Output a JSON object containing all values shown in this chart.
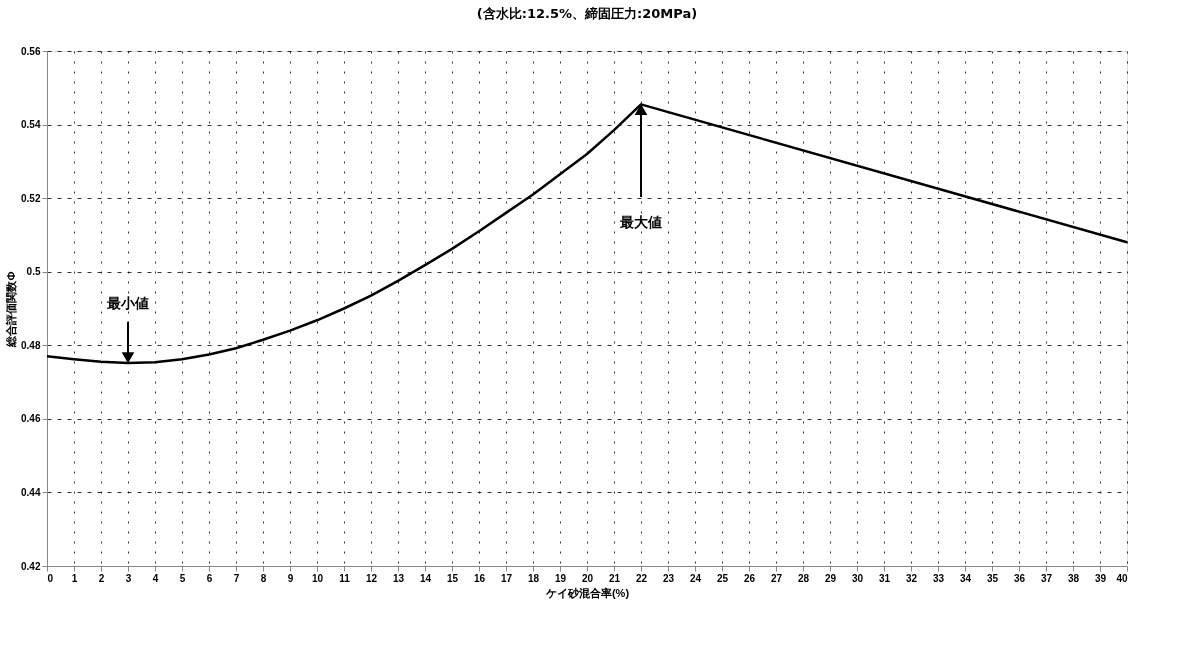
{
  "chart_data": {
    "type": "line",
    "title": "(含水比:12.5%、締固圧力:20MPa)",
    "xlabel": "ケイ砂混合率(%)",
    "ylabel": "総合評価関数Φ",
    "x": [
      0,
      1,
      2,
      3,
      4,
      5,
      6,
      7,
      8,
      9,
      10,
      11,
      12,
      13,
      14,
      15,
      16,
      17,
      18,
      19,
      20,
      21,
      22,
      40
    ],
    "series": [
      {
        "color": "#000000",
        "values": [
          0.477,
          0.4762,
          0.4755,
          0.4752,
          0.4754,
          0.4762,
          0.4775,
          0.4792,
          0.4815,
          0.484,
          0.4868,
          0.49,
          0.4935,
          0.4975,
          0.5018,
          0.5062,
          0.511,
          0.516,
          0.521,
          0.5265,
          0.532,
          0.5385,
          0.5455,
          0.508
        ]
      }
    ],
    "xlim": [
      0,
      40
    ],
    "xticks": [
      0,
      1,
      2,
      3,
      4,
      5,
      6,
      7,
      8,
      9,
      10,
      11,
      12,
      13,
      14,
      15,
      16,
      17,
      18,
      19,
      20,
      21,
      22,
      23,
      24,
      25,
      26,
      27,
      28,
      29,
      30,
      31,
      32,
      33,
      34,
      35,
      36,
      37,
      38,
      39,
      40
    ],
    "ylim": [
      0.42,
      0.56
    ],
    "yticks": [
      0.42,
      0.44,
      0.46,
      0.48,
      0.5,
      0.52,
      0.54,
      0.56
    ],
    "grid": true,
    "annotations": [
      {
        "text": "最小値",
        "x": 3,
        "y": 0.4752
      },
      {
        "text": "最大値",
        "x": 22,
        "y": 0.5455
      }
    ]
  }
}
